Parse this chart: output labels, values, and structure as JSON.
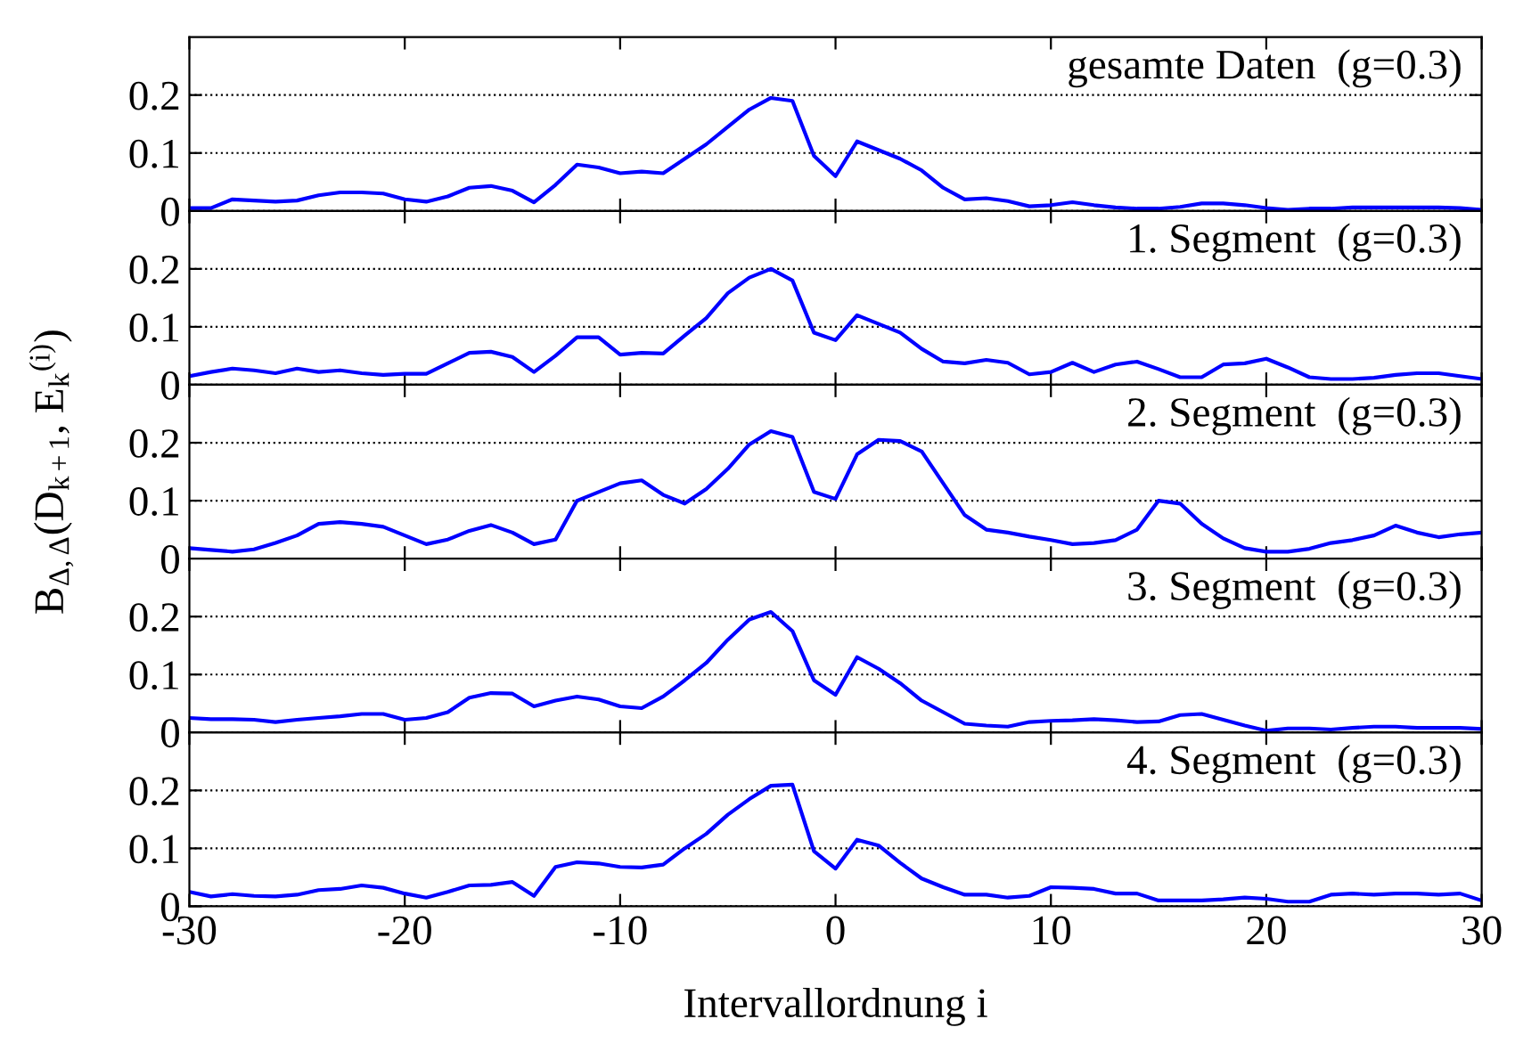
{
  "chart_data": [
    {
      "type": "line",
      "title": "gesamte Daten  (g=0.3)",
      "x": [
        -30,
        -29,
        -28,
        -27,
        -26,
        -25,
        -24,
        -23,
        -22,
        -21,
        -20,
        -19,
        -18,
        -17,
        -16,
        -15,
        -14,
        -13,
        -12,
        -11,
        -10,
        -9,
        -8,
        -7,
        -6,
        -5,
        -4,
        -3,
        -2,
        -1,
        0,
        1,
        2,
        3,
        4,
        5,
        6,
        7,
        8,
        9,
        10,
        11,
        12,
        13,
        14,
        15,
        16,
        17,
        18,
        19,
        20,
        21,
        22,
        23,
        24,
        25,
        26,
        27,
        28,
        29,
        30
      ],
      "series": [
        {
          "color": "#0000ff",
          "values": [
            0.005,
            0.005,
            0.02,
            0.018,
            0.016,
            0.018,
            0.027,
            0.032,
            0.032,
            0.03,
            0.02,
            0.016,
            0.025,
            0.04,
            0.043,
            0.035,
            0.015,
            0.045,
            0.08,
            0.075,
            0.065,
            0.068,
            0.065,
            0.09,
            0.115,
            0.145,
            0.175,
            0.195,
            0.19,
            0.095,
            0.06,
            0.12,
            0.105,
            0.09,
            0.07,
            0.04,
            0.02,
            0.022,
            0.017,
            0.008,
            0.01,
            0.015,
            0.01,
            0.006,
            0.004,
            0.004,
            0.007,
            0.013,
            0.013,
            0.01,
            0.005,
            0.002,
            0.004,
            0.004,
            0.006,
            0.006,
            0.006,
            0.006,
            0.006,
            0.005,
            0.002
          ]
        }
      ],
      "xlim": [
        -30,
        30
      ],
      "xticks": [
        -30,
        -20,
        -10,
        0,
        10,
        20,
        30
      ],
      "ylim": [
        0,
        0.3
      ],
      "yticks": [
        0,
        0.1,
        0.2
      ],
      "grid": "y",
      "line_style": "solid",
      "tick_labels": "y"
    },
    {
      "type": "line",
      "title": "1. Segment  (g=0.3)",
      "x": [
        -30,
        -29,
        -28,
        -27,
        -26,
        -25,
        -24,
        -23,
        -22,
        -21,
        -20,
        -19,
        -18,
        -17,
        -16,
        -15,
        -14,
        -13,
        -12,
        -11,
        -10,
        -9,
        -8,
        -7,
        -6,
        -5,
        -4,
        -3,
        -2,
        -1,
        0,
        1,
        2,
        3,
        4,
        5,
        6,
        7,
        8,
        9,
        10,
        11,
        12,
        13,
        14,
        15,
        16,
        17,
        18,
        19,
        20,
        21,
        22,
        23,
        24,
        25,
        26,
        27,
        28,
        29,
        30
      ],
      "series": [
        {
          "color": "#0000ff",
          "values": [
            0.015,
            0.022,
            0.028,
            0.025,
            0.02,
            0.028,
            0.022,
            0.025,
            0.02,
            0.017,
            0.019,
            0.019,
            0.037,
            0.055,
            0.057,
            0.048,
            0.022,
            0.05,
            0.082,
            0.082,
            0.052,
            0.055,
            0.054,
            0.085,
            0.115,
            0.158,
            0.185,
            0.2,
            0.18,
            0.09,
            0.077,
            0.12,
            0.105,
            0.09,
            0.062,
            0.04,
            0.037,
            0.043,
            0.038,
            0.018,
            0.022,
            0.038,
            0.022,
            0.035,
            0.04,
            0.027,
            0.013,
            0.013,
            0.035,
            0.037,
            0.045,
            0.03,
            0.013,
            0.01,
            0.01,
            0.012,
            0.017,
            0.02,
            0.02,
            0.015,
            0.01
          ]
        }
      ],
      "xlim": [
        -30,
        30
      ],
      "xticks": [
        -30,
        -20,
        -10,
        0,
        10,
        20,
        30
      ],
      "ylim": [
        0,
        0.3
      ],
      "yticks": [
        0,
        0.1,
        0.2
      ],
      "grid": "y",
      "line_style": "solid",
      "tick_labels": "y"
    },
    {
      "type": "line",
      "title": "2. Segment  (g=0.3)",
      "ylabel": "B$_{Δ,Δ}$(D$_{k+1}$, E$_{k}$$^{(i)}$)",
      "x": [
        -30,
        -29,
        -28,
        -27,
        -26,
        -25,
        -24,
        -23,
        -22,
        -21,
        -20,
        -19,
        -18,
        -17,
        -16,
        -15,
        -14,
        -13,
        -12,
        -11,
        -10,
        -9,
        -8,
        -7,
        -6,
        -5,
        -4,
        -3,
        -2,
        -1,
        0,
        1,
        2,
        3,
        4,
        5,
        6,
        7,
        8,
        9,
        10,
        11,
        12,
        13,
        14,
        15,
        16,
        17,
        18,
        19,
        20,
        21,
        22,
        23,
        24,
        25,
        26,
        27,
        28,
        29,
        30
      ],
      "series": [
        {
          "color": "#0000ff",
          "values": [
            0.018,
            0.015,
            0.012,
            0.016,
            0.027,
            0.04,
            0.06,
            0.063,
            0.06,
            0.055,
            0.04,
            0.025,
            0.033,
            0.048,
            0.058,
            0.045,
            0.025,
            0.033,
            0.1,
            0.115,
            0.13,
            0.135,
            0.11,
            0.095,
            0.12,
            0.155,
            0.197,
            0.22,
            0.21,
            0.115,
            0.103,
            0.18,
            0.205,
            0.203,
            0.185,
            0.13,
            0.075,
            0.05,
            0.045,
            0.038,
            0.032,
            0.025,
            0.027,
            0.032,
            0.05,
            0.1,
            0.095,
            0.06,
            0.035,
            0.018,
            0.012,
            0.012,
            0.017,
            0.027,
            0.032,
            0.04,
            0.057,
            0.045,
            0.037,
            0.042,
            0.045
          ]
        }
      ],
      "xlim": [
        -30,
        30
      ],
      "xticks": [
        -30,
        -20,
        -10,
        0,
        10,
        20,
        30
      ],
      "ylim": [
        0,
        0.3
      ],
      "yticks": [
        0,
        0.1,
        0.2
      ],
      "grid": "y",
      "line_style": "solid",
      "tick_labels": "y"
    },
    {
      "type": "line",
      "title": "3. Segment  (g=0.3)",
      "x": [
        -30,
        -29,
        -28,
        -27,
        -26,
        -25,
        -24,
        -23,
        -22,
        -21,
        -20,
        -19,
        -18,
        -17,
        -16,
        -15,
        -14,
        -13,
        -12,
        -11,
        -10,
        -9,
        -8,
        -7,
        -6,
        -5,
        -4,
        -3,
        -2,
        -1,
        0,
        1,
        2,
        3,
        4,
        5,
        6,
        7,
        8,
        9,
        10,
        11,
        12,
        13,
        14,
        15,
        16,
        17,
        18,
        19,
        20,
        21,
        22,
        23,
        24,
        25,
        26,
        27,
        28,
        29,
        30
      ],
      "series": [
        {
          "color": "#0000ff",
          "values": [
            0.025,
            0.023,
            0.023,
            0.022,
            0.018,
            0.022,
            0.025,
            0.028,
            0.032,
            0.032,
            0.022,
            0.025,
            0.035,
            0.06,
            0.068,
            0.067,
            0.045,
            0.055,
            0.062,
            0.057,
            0.045,
            0.042,
            0.062,
            0.09,
            0.12,
            0.16,
            0.195,
            0.208,
            0.175,
            0.09,
            0.065,
            0.13,
            0.11,
            0.085,
            0.055,
            0.035,
            0.015,
            0.012,
            0.01,
            0.018,
            0.02,
            0.021,
            0.023,
            0.021,
            0.018,
            0.019,
            0.03,
            0.032,
            0.022,
            0.012,
            0.003,
            0.007,
            0.007,
            0.005,
            0.008,
            0.01,
            0.01,
            0.008,
            0.008,
            0.008,
            0.006
          ]
        }
      ],
      "xlim": [
        -30,
        30
      ],
      "xticks": [
        -30,
        -20,
        -10,
        0,
        10,
        20,
        30
      ],
      "ylim": [
        0,
        0.3
      ],
      "yticks": [
        0,
        0.1,
        0.2
      ],
      "grid": "y",
      "line_style": "solid",
      "tick_labels": "y"
    },
    {
      "type": "line",
      "title": "4. Segment  (g=0.3)",
      "xlabel": "Intervallordnung i",
      "x": [
        -30,
        -29,
        -28,
        -27,
        -26,
        -25,
        -24,
        -23,
        -22,
        -21,
        -20,
        -19,
        -18,
        -17,
        -16,
        -15,
        -14,
        -13,
        -12,
        -11,
        -10,
        -9,
        -8,
        -7,
        -6,
        -5,
        -4,
        -3,
        -2,
        -1,
        0,
        1,
        2,
        3,
        4,
        5,
        6,
        7,
        8,
        9,
        10,
        11,
        12,
        13,
        14,
        15,
        16,
        17,
        18,
        19,
        20,
        21,
        22,
        23,
        24,
        25,
        26,
        27,
        28,
        29,
        30
      ],
      "series": [
        {
          "color": "#0000ff",
          "values": [
            0.025,
            0.017,
            0.021,
            0.018,
            0.017,
            0.02,
            0.028,
            0.03,
            0.036,
            0.032,
            0.022,
            0.015,
            0.025,
            0.036,
            0.037,
            0.042,
            0.018,
            0.068,
            0.076,
            0.074,
            0.068,
            0.067,
            0.072,
            0.1,
            0.125,
            0.158,
            0.185,
            0.208,
            0.21,
            0.095,
            0.065,
            0.115,
            0.105,
            0.075,
            0.048,
            0.033,
            0.02,
            0.02,
            0.015,
            0.018,
            0.033,
            0.032,
            0.03,
            0.022,
            0.022,
            0.01,
            0.01,
            0.01,
            0.012,
            0.015,
            0.013,
            0.008,
            0.008,
            0.02,
            0.022,
            0.02,
            0.022,
            0.022,
            0.02,
            0.022,
            0.01
          ]
        }
      ],
      "xlim": [
        -30,
        30
      ],
      "xticks": [
        -30,
        -20,
        -10,
        0,
        10,
        20,
        30
      ],
      "ylim": [
        0,
        0.3
      ],
      "yticks": [
        0,
        0.1,
        0.2
      ],
      "grid": "y",
      "line_style": "solid"
    }
  ]
}
